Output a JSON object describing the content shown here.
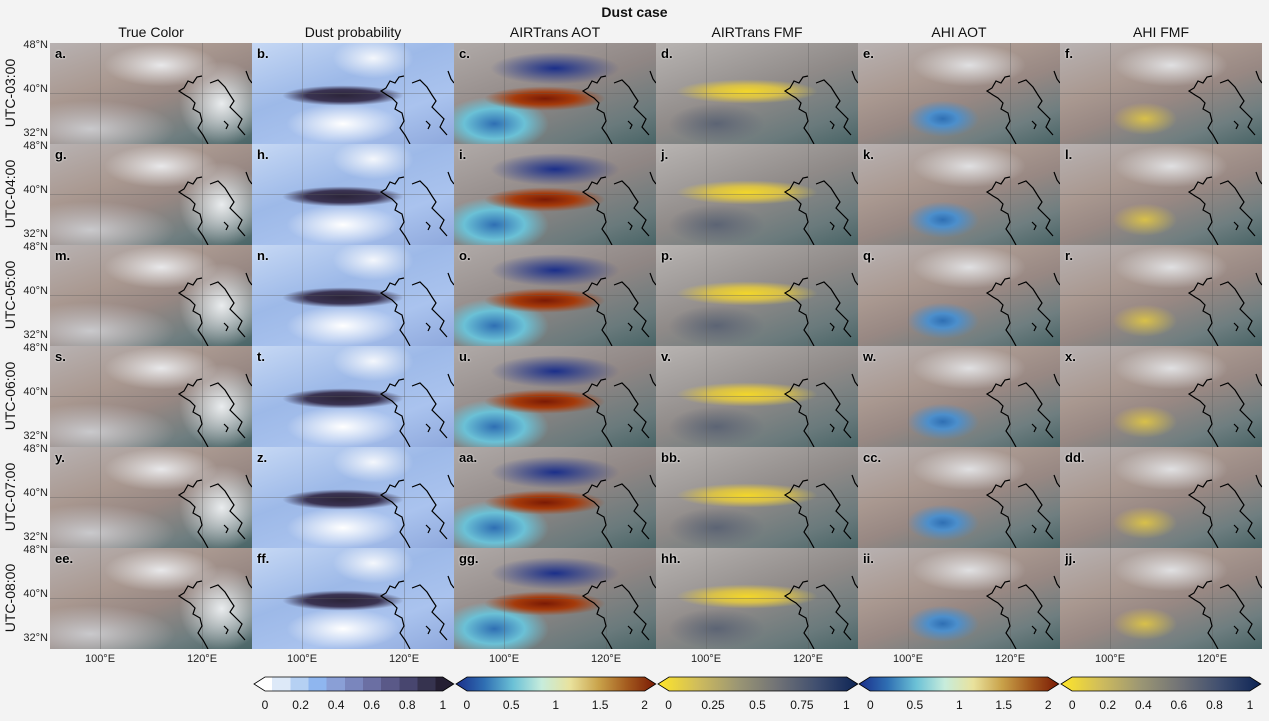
{
  "title": "Dust case",
  "columns": [
    "True Color",
    "Dust probability",
    "AIRTrans AOT",
    "AIRTrans FMF",
    "AHI AOT",
    "AHI FMF"
  ],
  "rows": [
    "UTC-03:00",
    "UTC-04:00",
    "UTC-05:00",
    "UTC-06:00",
    "UTC-07:00",
    "UTC-08:00"
  ],
  "panel_labels": [
    [
      "a.",
      "b.",
      "c.",
      "d.",
      "e.",
      "f."
    ],
    [
      "g.",
      "h.",
      "i.",
      "j.",
      "k.",
      "l."
    ],
    [
      "m.",
      "n.",
      "o.",
      "p.",
      "q.",
      "r."
    ],
    [
      "s.",
      "t.",
      "u.",
      "v.",
      "w.",
      "x."
    ],
    [
      "y.",
      "z.",
      "aa.",
      "bb.",
      "cc.",
      "dd."
    ],
    [
      "ee.",
      "ff.",
      "gg.",
      "hh.",
      "ii.",
      "jj."
    ]
  ],
  "lat_labels": [
    "48°N",
    "40°N",
    "32°N"
  ],
  "lon_labels": [
    "100°E",
    "120°E"
  ],
  "colorbars": [
    {
      "name": "Dust probability",
      "ticks": [
        "0",
        "0.2",
        "0.4",
        "0.6",
        "0.8",
        "1"
      ],
      "colors": [
        "#ffffff",
        "#dde9f8",
        "#b5d0f3",
        "#8fb6ef",
        "#8a9fd6",
        "#7a86bd",
        "#6b6fa3",
        "#5a5988",
        "#48466f",
        "#36334f",
        "#251f33"
      ],
      "extend": "both"
    },
    {
      "name": "AIRTrans AOT",
      "ticks": [
        "0",
        "0.5",
        "1",
        "1.5",
        "2"
      ],
      "colors": [
        "#1b2f8a",
        "#2f6fb3",
        "#6bc1d6",
        "#c7ecdc",
        "#e9e29d",
        "#c9a24a",
        "#a35a1e",
        "#7a1a05"
      ],
      "extend": "both"
    },
    {
      "name": "AIRTrans FMF",
      "ticks": [
        "0",
        "0.25",
        "0.5",
        "0.75",
        "1"
      ],
      "colors": [
        "#ffe629",
        "#cfbc5c",
        "#9b9674",
        "#707276",
        "#3f4e6f",
        "#0d2455"
      ],
      "extend": "both"
    },
    {
      "name": "AHI AOT",
      "ticks": [
        "0",
        "0.5",
        "1",
        "1.5",
        "2"
      ],
      "colors": [
        "#1b2f8a",
        "#2f6fb3",
        "#6bc1d6",
        "#c7ecdc",
        "#e9e29d",
        "#c9a24a",
        "#a35a1e",
        "#7a1a05"
      ],
      "extend": "both"
    },
    {
      "name": "AHI FMF",
      "ticks": [
        "0",
        "0.2",
        "0.4",
        "0.6",
        "0.8",
        "1"
      ],
      "colors": [
        "#ffe629",
        "#cfbc5c",
        "#9b9674",
        "#707276",
        "#3f4e6f",
        "#0d2455"
      ],
      "extend": "both"
    }
  ]
}
